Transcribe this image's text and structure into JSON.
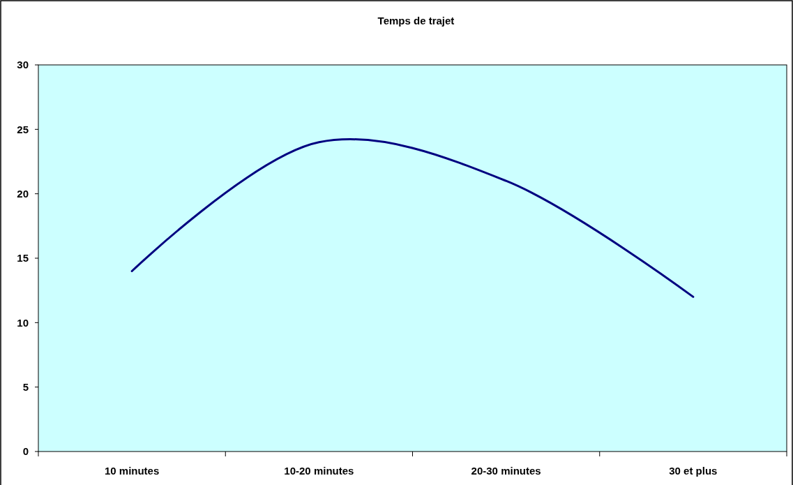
{
  "chart_data": {
    "type": "line",
    "title": "Temps de trajet",
    "categories": [
      "10 minutes",
      "10-20 minutes",
      "20-30 minutes",
      "30 et plus"
    ],
    "series": [
      {
        "color": "#000080",
        "values": [
          14,
          24,
          21,
          12
        ]
      }
    ],
    "ylim": [
      0,
      30
    ],
    "yticks": [
      0,
      5,
      10,
      15,
      20,
      25,
      30
    ]
  }
}
